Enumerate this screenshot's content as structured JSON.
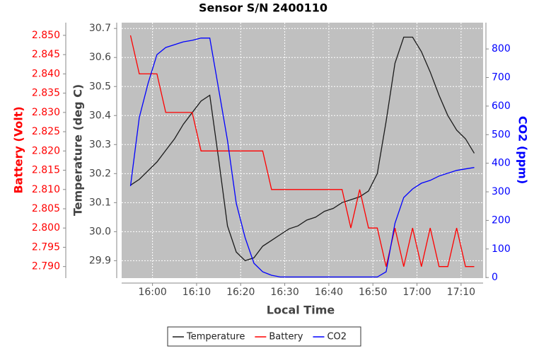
{
  "chart_data": {
    "type": "line",
    "title": "Sensor S/N 2400110",
    "xlabel": "Local Time",
    "ylabel": "Temperature (deg C)",
    "y2label": "CO2 (ppm)",
    "y3label": "Battery (Volt)",
    "x": [
      "15:55",
      "15:57",
      "15:59",
      "16:01",
      "16:03",
      "16:05",
      "16:07",
      "16:09",
      "16:11",
      "16:13",
      "16:15",
      "16:17",
      "16:19",
      "16:21",
      "16:23",
      "16:25",
      "16:27",
      "16:29",
      "16:31",
      "16:33",
      "16:35",
      "16:37",
      "16:39",
      "16:41",
      "16:43",
      "16:45",
      "16:47",
      "16:49",
      "16:51",
      "16:53",
      "16:55",
      "16:57",
      "16:59",
      "17:01",
      "17:03",
      "17:05",
      "17:07",
      "17:09",
      "17:11",
      "17:13"
    ],
    "xlim": [
      "15:53",
      "17:15"
    ],
    "xticks": [
      "16:00",
      "16:10",
      "16:20",
      "16:30",
      "16:40",
      "16:50",
      "17:00",
      "17:10"
    ],
    "ylim": [
      29.84,
      30.72
    ],
    "yticks": [
      {
        "value": 29.9,
        "label": "29.9"
      },
      {
        "value": 30,
        "label": "30.0"
      },
      30.1,
      30.2,
      30.3,
      30.4,
      30.5,
      30.6,
      30.7
    ],
    "y2lim": [
      -2,
      892
    ],
    "y2ticks": [
      0,
      100,
      200,
      300,
      400,
      500,
      600,
      700,
      800
    ],
    "y3lim": [
      2.787,
      2.8533
    ],
    "y3ticks": [
      {
        "value": 2.79,
        "label": "2.790"
      },
      2.795,
      {
        "value": 2.8,
        "label": "2.800"
      },
      2.805,
      {
        "value": 2.81,
        "label": "2.810"
      },
      2.815,
      {
        "value": 2.82,
        "label": "2.820"
      },
      2.825,
      {
        "value": 2.83,
        "label": "2.830"
      },
      2.835,
      {
        "value": 2.84,
        "label": "2.840"
      },
      2.845,
      {
        "value": 2.85,
        "label": "2.850"
      }
    ],
    "grid": true,
    "legend": "bottom",
    "series": [
      {
        "name": "Temperature",
        "color": "#1a1a1a",
        "axis": "y",
        "values": [
          30.16,
          30.18,
          30.21,
          30.24,
          30.28,
          30.32,
          30.37,
          30.41,
          30.45,
          30.47,
          30.25,
          30.02,
          29.93,
          29.9,
          29.91,
          29.95,
          29.97,
          29.99,
          30.01,
          30.02,
          30.04,
          30.05,
          30.07,
          30.08,
          30.1,
          30.11,
          30.12,
          30.14,
          30.2,
          30.38,
          30.58,
          30.67,
          30.67,
          30.62,
          30.55,
          30.47,
          30.4,
          30.35,
          30.32,
          30.27
        ]
      },
      {
        "name": "Battery",
        "color": "#ff0000",
        "axis": "y3",
        "values": [
          2.85,
          2.84,
          2.84,
          2.84,
          2.83,
          2.83,
          2.83,
          2.83,
          2.82,
          2.82,
          2.82,
          2.82,
          2.82,
          2.82,
          2.82,
          2.82,
          2.81,
          2.81,
          2.81,
          2.81,
          2.81,
          2.81,
          2.81,
          2.81,
          2.81,
          2.8,
          2.81,
          2.8,
          2.8,
          2.79,
          2.8,
          2.79,
          2.8,
          2.79,
          2.8,
          2.79,
          2.79,
          2.8,
          2.79,
          2.79
        ]
      },
      {
        "name": "CO2",
        "color": "#0000ff",
        "axis": "y2",
        "values": [
          320,
          560,
          680,
          780,
          805,
          815,
          825,
          830,
          838,
          838,
          660,
          480,
          260,
          140,
          50,
          20,
          8,
          2,
          2,
          2,
          2,
          2,
          2,
          2,
          2,
          2,
          2,
          2,
          2,
          20,
          190,
          280,
          310,
          330,
          340,
          355,
          365,
          375,
          380,
          385
        ]
      }
    ]
  }
}
